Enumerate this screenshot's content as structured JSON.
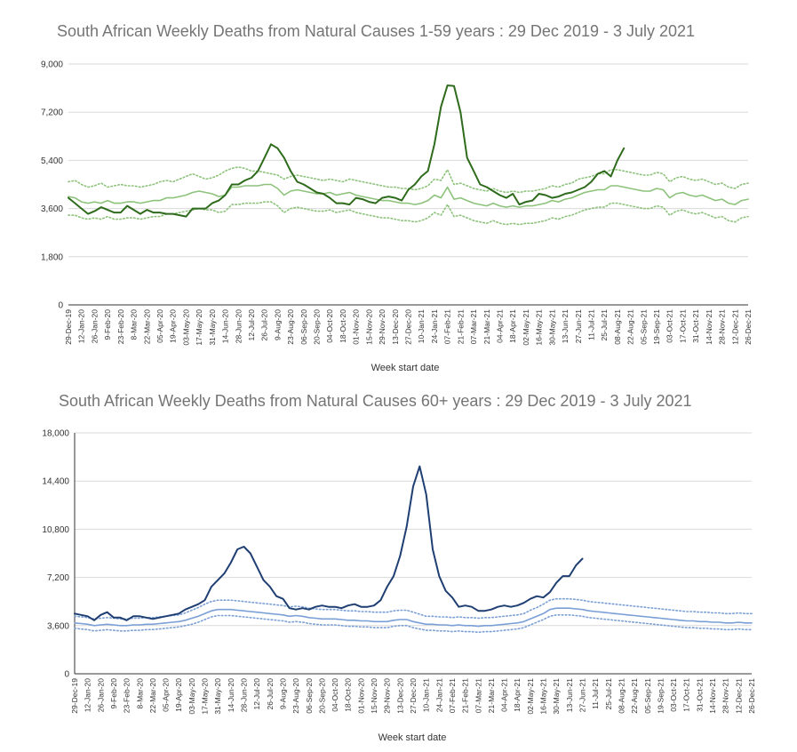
{
  "chart_data": [
    {
      "type": "line",
      "title": "South African Weekly Deaths from Natural Causes 1-59 years : 29 Dec 2019 - 3 July 2021",
      "xlabel": "Week start date",
      "ylabel": "",
      "ylim": [
        0,
        9000
      ],
      "yticks": [
        "0",
        "1,800",
        "3,600",
        "5,400",
        "7,200",
        "9,000"
      ],
      "yticks_values": [
        0,
        1800,
        3600,
        5400,
        7200,
        9000
      ],
      "grid": true,
      "legend": "none",
      "n_weeks": 105,
      "x_labels": [
        "29-Dec-19",
        "12-Jan-20",
        "26-Jan-20",
        "9-Feb-20",
        "23-Feb-20",
        "8-Mar-20",
        "22-Mar-20",
        "05-Apr-20",
        "19-Apr-20",
        "03-May-20",
        "17-May-20",
        "31-May-20",
        "14-Jun-20",
        "28-Jun-20",
        "12-Jul-20",
        "26-Jul-20",
        "9-Aug-20",
        "23-Aug-20",
        "06-Sep-20",
        "20-Sep-20",
        "04-Oct-20",
        "18-Oct-20",
        "01-Nov-20",
        "15-Nov-20",
        "29-Nov-20",
        "13-Dec-20",
        "27-Dec-20",
        "10-Jan-21",
        "24-Jan-21",
        "07-Feb-21",
        "21-Feb-21",
        "07-Mar-21",
        "21-Mar-21",
        "04-Apr-21",
        "18-Apr-21",
        "02-May-21",
        "16-May-21",
        "30-May-21",
        "13-Jun-21",
        "27-Jun-21",
        "11-Jul-21",
        "25-Jul-21",
        "08-Aug-21",
        "22-Aug-21",
        "05-Sep-21",
        "19-Sep-21",
        "03-Oct-21",
        "17-Oct-21",
        "31-Oct-21",
        "14-Nov-21",
        "28-Nov-21",
        "12-Dec-21",
        "26-Dec-21"
      ],
      "series": [
        {
          "color": "#2e6b1c",
          "style": "solid",
          "values": [
            4000,
            3800,
            3600,
            3400,
            3500,
            3650,
            3550,
            3450,
            3450,
            3700,
            3550,
            3400,
            3550,
            3450,
            3450,
            3400,
            3400,
            3350,
            3300,
            3600,
            3600,
            3600,
            3800,
            3900,
            4100,
            4500,
            4500,
            4650,
            4750,
            5000,
            5500,
            6000,
            5850,
            5500,
            5000,
            4600,
            4500,
            4350,
            4200,
            4150,
            4000,
            3800,
            3800,
            3750,
            4000,
            3950,
            3850,
            3800,
            4000,
            4050,
            4000,
            3900,
            4300,
            4500,
            4800,
            5000,
            6000,
            7400,
            8200,
            8180,
            7200,
            5500,
            5000,
            4500,
            4400,
            4250,
            4100,
            4000,
            4150,
            3750,
            3850,
            3900,
            4150,
            4100,
            4000,
            4050,
            4150,
            4200,
            4300,
            4400,
            4600,
            4900,
            5000,
            4800,
            5400,
            5850
          ]
        },
        {
          "color": "#8cc27a",
          "style": "solid",
          "values": [
            4050,
            4000,
            3850,
            3800,
            3850,
            3800,
            3900,
            3800,
            3800,
            3850,
            3850,
            3800,
            3850,
            3900,
            3900,
            4000,
            4000,
            4050,
            4100,
            4200,
            4250,
            4200,
            4150,
            4050,
            4100,
            4400,
            4400,
            4450,
            4450,
            4450,
            4500,
            4500,
            4350,
            4100,
            4250,
            4300,
            4250,
            4200,
            4150,
            4150,
            4200,
            4100,
            4150,
            4200,
            4100,
            4050,
            4000,
            3950,
            3900,
            3900,
            3850,
            3800,
            3800,
            3750,
            3800,
            3900,
            4100,
            4000,
            4400,
            3950,
            4000,
            3900,
            3800,
            3750,
            3700,
            3800,
            3700,
            3650,
            3700,
            3650,
            3700,
            3700,
            3750,
            3800,
            3900,
            3850,
            3950,
            4000,
            4100,
            4200,
            4250,
            4300,
            4300,
            4450,
            4450,
            4400,
            4350,
            4300,
            4250,
            4250,
            4350,
            4300,
            4000,
            4150,
            4200,
            4100,
            4050,
            4100,
            4000,
            3900,
            3950,
            3800,
            3750,
            3900,
            3950
          ]
        },
        {
          "color": "#8cc27a",
          "style": "dotted",
          "values": [
            4600,
            4650,
            4500,
            4400,
            4450,
            4550,
            4400,
            4450,
            4500,
            4450,
            4450,
            4400,
            4450,
            4500,
            4600,
            4650,
            4600,
            4700,
            4800,
            4900,
            4800,
            4700,
            4750,
            4850,
            5000,
            5100,
            5150,
            5100,
            5000,
            5000,
            4950,
            4900,
            4850,
            4700,
            4800,
            4850,
            4800,
            4750,
            4700,
            4650,
            4700,
            4650,
            4600,
            4700,
            4650,
            4600,
            4550,
            4500,
            4450,
            4400,
            4400,
            4350,
            4350,
            4300,
            4350,
            4450,
            4700,
            4650,
            5050,
            4500,
            4550,
            4450,
            4350,
            4300,
            4250,
            4350,
            4250,
            4200,
            4250,
            4200,
            4250,
            4250,
            4300,
            4350,
            4450,
            4400,
            4500,
            4550,
            4700,
            4750,
            4800,
            4900,
            4900,
            5050,
            5050,
            5000,
            4950,
            4900,
            4850,
            4850,
            4950,
            4900,
            4600,
            4750,
            4800,
            4700,
            4650,
            4700,
            4600,
            4500,
            4550,
            4400,
            4350,
            4500,
            4550
          ]
        },
        {
          "color": "#8cc27a",
          "style": "dotted",
          "values": [
            3350,
            3350,
            3250,
            3200,
            3250,
            3200,
            3300,
            3200,
            3200,
            3250,
            3250,
            3200,
            3250,
            3300,
            3300,
            3400,
            3400,
            3450,
            3500,
            3550,
            3600,
            3550,
            3550,
            3450,
            3500,
            3750,
            3750,
            3800,
            3800,
            3800,
            3850,
            3850,
            3700,
            3450,
            3600,
            3650,
            3600,
            3550,
            3500,
            3500,
            3550,
            3450,
            3500,
            3550,
            3450,
            3400,
            3350,
            3300,
            3250,
            3250,
            3200,
            3150,
            3150,
            3100,
            3150,
            3250,
            3450,
            3350,
            3750,
            3300,
            3350,
            3250,
            3150,
            3100,
            3050,
            3150,
            3050,
            3000,
            3050,
            3000,
            3050,
            3050,
            3100,
            3150,
            3250,
            3200,
            3300,
            3350,
            3450,
            3550,
            3600,
            3650,
            3650,
            3800,
            3800,
            3750,
            3700,
            3650,
            3600,
            3600,
            3700,
            3650,
            3350,
            3500,
            3550,
            3450,
            3400,
            3450,
            3350,
            3250,
            3300,
            3150,
            3100,
            3250,
            3300
          ]
        }
      ]
    },
    {
      "type": "line",
      "title": "South African Weekly Deaths from Natural Causes 60+ years : 29 Dec 2019 - 3 July 2021",
      "xlabel": "Week start date",
      "ylabel": "",
      "ylim": [
        0,
        18000
      ],
      "yticks": [
        "0",
        "3,600",
        "7,200",
        "10,800",
        "14,400",
        "18,000"
      ],
      "yticks_values": [
        0,
        3600,
        7200,
        10800,
        14400,
        18000
      ],
      "grid": true,
      "legend": "none",
      "n_weeks": 105,
      "x_labels": [
        "29-Dec-19",
        "12-Jan-20",
        "26-Jan-20",
        "9-Feb-20",
        "23-Feb-20",
        "8-Mar-20",
        "22-Mar-20",
        "05-Apr-20",
        "19-Apr-20",
        "03-May-20",
        "17-May-20",
        "31-May-20",
        "14-Jun-20",
        "28-Jun-20",
        "12-Jul-20",
        "26-Jul-20",
        "9-Aug-20",
        "23-Aug-20",
        "06-Sep-20",
        "20-Sep-20",
        "04-Oct-20",
        "18-Oct-20",
        "01-Nov-20",
        "15-Nov-20",
        "29-Nov-20",
        "13-Dec-20",
        "27-Dec-20",
        "10-Jan-21",
        "24-Jan-21",
        "07-Feb-21",
        "21-Feb-21",
        "07-Mar-21",
        "21-Mar-21",
        "04-Apr-21",
        "18-Apr-21",
        "02-May-21",
        "16-May-21",
        "30-May-21",
        "13-Jun-21",
        "27-Jun-21",
        "11-Jul-21",
        "25-Jul-21",
        "08-Aug-21",
        "22-Aug-21",
        "05-Sep-21",
        "19-Sep-21",
        "03-Oct-21",
        "17-Oct-21",
        "31-Oct-21",
        "14-Nov-21",
        "28-Nov-21",
        "12-Dec-21",
        "26-Dec-21"
      ],
      "series": [
        {
          "color": "#1f3f73",
          "style": "solid",
          "values": [
            4500,
            4400,
            4300,
            4000,
            4400,
            4600,
            4200,
            4200,
            4000,
            4300,
            4300,
            4200,
            4100,
            4200,
            4300,
            4400,
            4500,
            4800,
            5000,
            5200,
            5500,
            6500,
            7000,
            7500,
            8300,
            9300,
            9500,
            9000,
            8000,
            7000,
            6500,
            5800,
            5600,
            4900,
            4800,
            4900,
            4800,
            5000,
            5100,
            5000,
            5000,
            4900,
            5100,
            5200,
            5000,
            5000,
            5100,
            5500,
            6500,
            7300,
            8800,
            11000,
            14000,
            15500,
            13400,
            9300,
            7300,
            6200,
            5700,
            5000,
            5100,
            5000,
            4700,
            4700,
            4800,
            5000,
            5100,
            5000,
            5100,
            5300,
            5600,
            5800,
            5700,
            6100,
            6800,
            7300,
            7300,
            8100,
            8600
          ]
        },
        {
          "color": "#7a9fd6",
          "style": "solid",
          "values": [
            3800,
            3750,
            3700,
            3600,
            3650,
            3700,
            3650,
            3600,
            3600,
            3650,
            3650,
            3700,
            3700,
            3750,
            3800,
            3850,
            3900,
            4000,
            4150,
            4300,
            4500,
            4700,
            4800,
            4800,
            4800,
            4750,
            4700,
            4650,
            4600,
            4550,
            4500,
            4450,
            4400,
            4300,
            4350,
            4300,
            4200,
            4150,
            4100,
            4100,
            4100,
            4050,
            4000,
            4000,
            3950,
            3950,
            3900,
            3900,
            3900,
            4000,
            4050,
            4050,
            3900,
            3800,
            3700,
            3700,
            3650,
            3650,
            3600,
            3650,
            3600,
            3600,
            3550,
            3600,
            3600,
            3650,
            3700,
            3750,
            3800,
            3900,
            4100,
            4300,
            4500,
            4800,
            4900,
            4900,
            4900,
            4850,
            4800,
            4700,
            4650,
            4600,
            4550,
            4500,
            4450,
            4400,
            4350,
            4300,
            4250,
            4200,
            4150,
            4100,
            4050,
            4000,
            3950,
            3950,
            3900,
            3900,
            3850,
            3850,
            3800,
            3800,
            3850,
            3800,
            3800
          ]
        },
        {
          "color": "#7a9fd6",
          "style": "dotted",
          "values": [
            4300,
            4250,
            4200,
            4100,
            4150,
            4200,
            4150,
            4100,
            4100,
            4150,
            4150,
            4200,
            4200,
            4250,
            4300,
            4350,
            4400,
            4550,
            4750,
            4950,
            5200,
            5400,
            5500,
            5500,
            5500,
            5450,
            5400,
            5350,
            5300,
            5250,
            5200,
            5150,
            5100,
            5000,
            5050,
            5000,
            4900,
            4850,
            4800,
            4800,
            4800,
            4750,
            4700,
            4700,
            4650,
            4650,
            4600,
            4600,
            4600,
            4700,
            4750,
            4750,
            4600,
            4450,
            4300,
            4300,
            4250,
            4250,
            4200,
            4250,
            4200,
            4200,
            4150,
            4200,
            4200,
            4250,
            4300,
            4350,
            4400,
            4500,
            4750,
            4950,
            5200,
            5500,
            5600,
            5600,
            5600,
            5550,
            5500,
            5400,
            5350,
            5300,
            5250,
            5200,
            5150,
            5100,
            5050,
            5000,
            4950,
            4900,
            4850,
            4800,
            4750,
            4700,
            4650,
            4650,
            4600,
            4600,
            4550,
            4550,
            4500,
            4500,
            4550,
            4500,
            4500
          ]
        },
        {
          "color": "#7a9fd6",
          "style": "dotted",
          "values": [
            3400,
            3350,
            3300,
            3200,
            3250,
            3300,
            3250,
            3200,
            3200,
            3250,
            3250,
            3300,
            3300,
            3350,
            3400,
            3450,
            3500,
            3600,
            3700,
            3850,
            4050,
            4250,
            4350,
            4350,
            4350,
            4300,
            4250,
            4200,
            4150,
            4100,
            4050,
            4000,
            3950,
            3850,
            3900,
            3850,
            3750,
            3700,
            3650,
            3650,
            3650,
            3600,
            3550,
            3550,
            3500,
            3500,
            3450,
            3450,
            3450,
            3550,
            3600,
            3600,
            3450,
            3350,
            3250,
            3250,
            3200,
            3200,
            3150,
            3200,
            3150,
            3150,
            3100,
            3150,
            3150,
            3200,
            3250,
            3300,
            3350,
            3450,
            3650,
            3850,
            4050,
            4300,
            4400,
            4400,
            4400,
            4350,
            4300,
            4200,
            4150,
            4100,
            4050,
            4000,
            3950,
            3900,
            3850,
            3800,
            3750,
            3700,
            3650,
            3600,
            3550,
            3500,
            3450,
            3450,
            3400,
            3400,
            3350,
            3350,
            3300,
            3300,
            3350,
            3300,
            3300
          ]
        }
      ]
    }
  ]
}
